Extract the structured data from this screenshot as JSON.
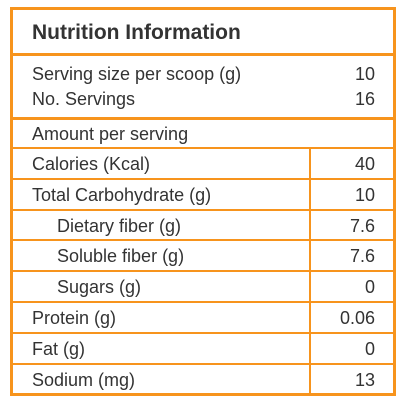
{
  "title": "Nutrition Information",
  "serving": {
    "size_label": "Serving size per scoop (g)",
    "size_value": "10",
    "count_label": "No. Servings",
    "count_value": "16"
  },
  "amount_header": "Amount per serving",
  "nutrients": [
    {
      "label": "Calories (Kcal)",
      "value": "40"
    },
    {
      "label": "Total Carbohydrate (g)",
      "value": "10"
    },
    {
      "label": "Dietary fiber (g)",
      "value": "7.6"
    },
    {
      "label": "Soluble fiber (g)",
      "value": "7.6"
    },
    {
      "label": "Sugars (g)",
      "value": "0"
    },
    {
      "label": "Protein (g)",
      "value": "0.06"
    },
    {
      "label": "Fat (g)",
      "value": "0"
    },
    {
      "label": "Sodium (mg)",
      "value": "13"
    }
  ],
  "colors": {
    "border": "#f7941d",
    "text": "#333333"
  }
}
